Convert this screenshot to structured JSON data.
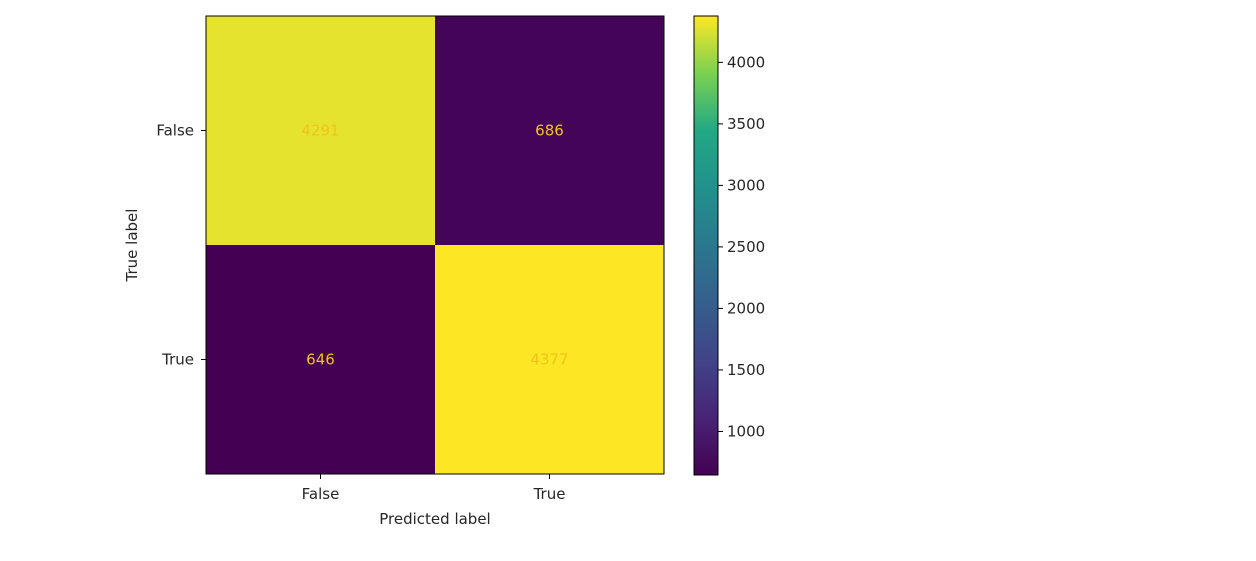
{
  "chart_data": {
    "type": "heatmap",
    "title": "",
    "xlabel": "Predicted label",
    "ylabel": "True label",
    "x_categories": [
      "False",
      "True"
    ],
    "y_categories": [
      "False",
      "True"
    ],
    "matrix": [
      [
        4291,
        686
      ],
      [
        646,
        4377
      ]
    ],
    "colormap": "viridis",
    "colorbar": {
      "ticks": [
        1000,
        1500,
        2000,
        2500,
        3000,
        3500,
        4000
      ],
      "range": [
        646,
        4377
      ]
    },
    "grid": false
  },
  "colors": {
    "low_cell": "#440154",
    "high_cell": "#fde725",
    "cell_text": "#f0c419",
    "axis": "#000000",
    "text": "#262626"
  }
}
